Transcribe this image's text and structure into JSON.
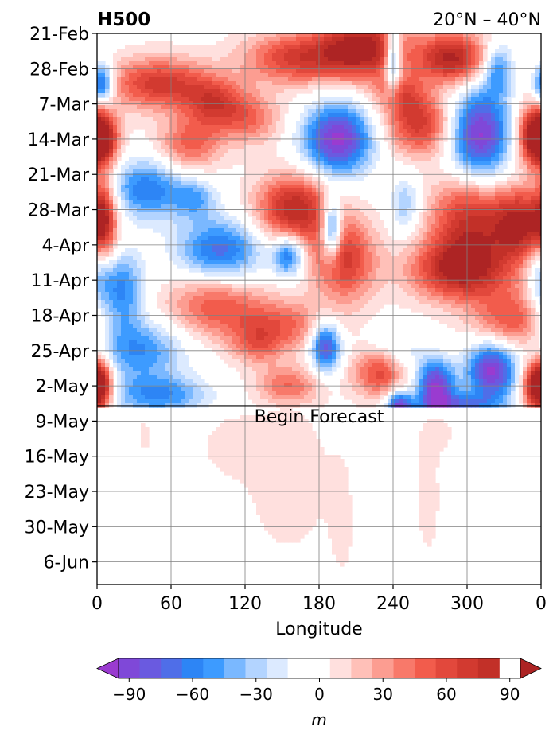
{
  "chart_data": {
    "type": "heatmap",
    "title": "H500",
    "subtitle": "20°N – 40°N",
    "xlabel": "Longitude",
    "ylabel": "",
    "x_ticks": [
      "0",
      "60",
      "120",
      "180",
      "240",
      "300",
      "0"
    ],
    "x_tick_values": [
      0,
      60,
      120,
      180,
      240,
      300,
      360
    ],
    "xlim": [
      0,
      360
    ],
    "y_ticks": [
      "21-Feb",
      "28-Feb",
      "7-Mar",
      "14-Mar",
      "21-Mar",
      "28-Mar",
      "4-Apr",
      "11-Apr",
      "18-Apr",
      "25-Apr",
      "2-May",
      "9-May",
      "16-May",
      "23-May",
      "30-May",
      "6-Jun"
    ],
    "y_tick_days": [
      0,
      7,
      14,
      21,
      28,
      35,
      42,
      49,
      56,
      63,
      70,
      77,
      84,
      91,
      98,
      105
    ],
    "ylim_days": [
      0,
      109
    ],
    "forecast_start_day": 74,
    "annotation": "Begin Forecast",
    "grid": true,
    "colorbar": {
      "label": "m",
      "tick_labels": [
        "−90",
        "−60",
        "−30",
        "0",
        "30",
        "60",
        "90"
      ],
      "tick_values": [
        -90,
        -60,
        -30,
        0,
        30,
        60,
        90
      ],
      "levels": [
        -105,
        -95,
        -85,
        -75,
        -65,
        -55,
        -45,
        -35,
        -25,
        -15,
        -5,
        5,
        15,
        25,
        35,
        45,
        55,
        65,
        75,
        85,
        95,
        105
      ],
      "colors": [
        "#9a3bd0",
        "#7f48d8",
        "#6a5ae0",
        "#4f6ee8",
        "#2d85f5",
        "#3d9bff",
        "#7ab8ff",
        "#b3d4ff",
        "#dceaff",
        "#ffffff",
        "#ffffff",
        "#ffe0de",
        "#ffc0b8",
        "#fc9d91",
        "#f8796a",
        "#f25c4c",
        "#e2483c",
        "#d23a30",
        "#c23028",
        "#ad2424"
      ],
      "extend": "both"
    },
    "blobs": [
      {
        "lon": 215,
        "day": 3,
        "rlon": 35,
        "rday": 6,
        "value": 95
      },
      {
        "lon": 288,
        "day": 5,
        "rlon": 28,
        "rday": 5,
        "value": 90
      },
      {
        "lon": 160,
        "day": 5,
        "rlon": 40,
        "rday": 5,
        "value": 65
      },
      {
        "lon": 50,
        "day": 10,
        "rlon": 40,
        "rday": 5,
        "value": 70
      },
      {
        "lon": 95,
        "day": 14,
        "rlon": 25,
        "rday": 5,
        "value": 60
      },
      {
        "lon": 245,
        "day": 12,
        "rlon": 20,
        "rday": 4,
        "value": 45
      },
      {
        "lon": 3,
        "day": 10,
        "rlon": 10,
        "rday": 4,
        "value": -85
      },
      {
        "lon": 240,
        "day": 5,
        "rlon": 7,
        "rday": 7,
        "value": -80
      },
      {
        "lon": 325,
        "day": 7,
        "rlon": 12,
        "rday": 5,
        "value": -55
      },
      {
        "lon": 195,
        "day": 21,
        "rlon": 28,
        "rday": 7,
        "value": -100
      },
      {
        "lon": 310,
        "day": 20,
        "rlon": 25,
        "rday": 9,
        "value": -100
      },
      {
        "lon": 262,
        "day": 18,
        "rlon": 28,
        "rday": 6,
        "value": 70
      },
      {
        "lon": 3,
        "day": 21,
        "rlon": 14,
        "rday": 5,
        "value": 85
      },
      {
        "lon": 355,
        "day": 20,
        "rlon": 15,
        "rday": 6,
        "value": 80
      },
      {
        "lon": 75,
        "day": 22,
        "rlon": 25,
        "rday": 5,
        "value": 50
      },
      {
        "lon": 125,
        "day": 17,
        "rlon": 25,
        "rday": 5,
        "value": 40
      },
      {
        "lon": 40,
        "day": 31,
        "rlon": 30,
        "rday": 6,
        "value": -65
      },
      {
        "lon": 80,
        "day": 33,
        "rlon": 18,
        "rday": 4,
        "value": -40
      },
      {
        "lon": 160,
        "day": 35,
        "rlon": 30,
        "rday": 7,
        "value": 85
      },
      {
        "lon": 190,
        "day": 39,
        "rlon": 8,
        "rday": 6,
        "value": -90
      },
      {
        "lon": 250,
        "day": 34,
        "rlon": 12,
        "rday": 6,
        "value": -35
      },
      {
        "lon": 300,
        "day": 37,
        "rlon": 30,
        "rday": 9,
        "value": 70
      },
      {
        "lon": 345,
        "day": 38,
        "rlon": 25,
        "rday": 7,
        "value": 90
      },
      {
        "lon": 5,
        "day": 37,
        "rlon": 10,
        "rday": 9,
        "value": 70
      },
      {
        "lon": 100,
        "day": 43,
        "rlon": 35,
        "rday": 6,
        "value": -70
      },
      {
        "lon": 155,
        "day": 44,
        "rlon": 12,
        "rday": 4,
        "value": -70
      },
      {
        "lon": 200,
        "day": 45,
        "rlon": 25,
        "rday": 8,
        "value": 70
      },
      {
        "lon": 295,
        "day": 47,
        "rlon": 40,
        "rday": 6,
        "value": 85
      },
      {
        "lon": 20,
        "day": 51,
        "rlon": 18,
        "rday": 8,
        "value": -60
      },
      {
        "lon": 360,
        "day": 47,
        "rlon": 12,
        "rday": 8,
        "value": -45
      },
      {
        "lon": 95,
        "day": 54,
        "rlon": 40,
        "rday": 6,
        "value": 50
      },
      {
        "lon": 150,
        "day": 58,
        "rlon": 40,
        "rday": 5,
        "value": 45
      },
      {
        "lon": 335,
        "day": 57,
        "rlon": 30,
        "rday": 6,
        "value": 55
      },
      {
        "lon": 185,
        "day": 62,
        "rlon": 12,
        "rday": 5,
        "value": -90
      },
      {
        "lon": 240,
        "day": 64,
        "rlon": 25,
        "rday": 5,
        "value": -35
      },
      {
        "lon": 35,
        "day": 63,
        "rlon": 35,
        "rday": 6,
        "value": -55
      },
      {
        "lon": 130,
        "day": 62,
        "rlon": 20,
        "rday": 4,
        "value": 35
      },
      {
        "lon": 230,
        "day": 67,
        "rlon": 22,
        "rday": 5,
        "value": 75
      },
      {
        "lon": 275,
        "day": 70,
        "rlon": 15,
        "rday": 5,
        "value": -95
      },
      {
        "lon": 320,
        "day": 67,
        "rlon": 20,
        "rday": 6,
        "value": -100
      },
      {
        "lon": 355,
        "day": 70,
        "rlon": 12,
        "rday": 5,
        "value": 85
      },
      {
        "lon": 3,
        "day": 70,
        "rlon": 10,
        "rday": 5,
        "value": 85
      },
      {
        "lon": 50,
        "day": 72,
        "rlon": 40,
        "rday": 4,
        "value": -55
      },
      {
        "lon": 155,
        "day": 70,
        "rlon": 25,
        "rday": 4,
        "value": 45
      },
      {
        "lon": 245,
        "day": 74,
        "rlon": 10,
        "rday": 3,
        "value": -85
      },
      {
        "lon": 290,
        "day": 74,
        "rlon": 35,
        "rday": 2.5,
        "value": -60
      }
    ],
    "forecast_blobs": [
      {
        "lon": 155,
        "day": 88,
        "rlon": 35,
        "rday": 16,
        "value": 10
      },
      {
        "lon": 110,
        "day": 82,
        "rlon": 25,
        "rday": 6,
        "value": 9
      },
      {
        "lon": 200,
        "day": 96,
        "rlon": 12,
        "rday": 14,
        "value": 8
      },
      {
        "lon": 230,
        "day": 90,
        "rlon": 22,
        "rday": 16,
        "value": -9
      },
      {
        "lon": 268,
        "day": 92,
        "rlon": 10,
        "rday": 12,
        "value": 10
      },
      {
        "lon": 285,
        "day": 80,
        "rlon": 25,
        "rday": 5,
        "value": 8
      },
      {
        "lon": 310,
        "day": 82,
        "rlon": 25,
        "rday": 6,
        "value": -8
      },
      {
        "lon": 38,
        "day": 80,
        "rlon": 4,
        "rday": 3,
        "value": 10
      },
      {
        "lon": 358,
        "day": 99,
        "rlon": 6,
        "rday": 3,
        "value": -9
      }
    ]
  }
}
